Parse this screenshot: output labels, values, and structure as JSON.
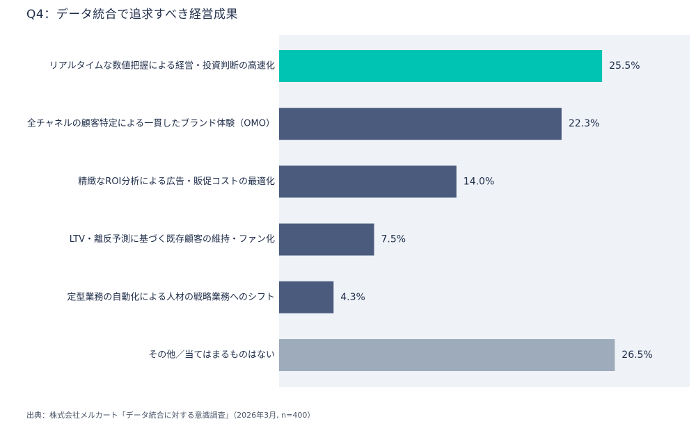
{
  "title": "Q4：データ統合で追求すべき経営成果",
  "source": "出典：株式会社メルカート「データ統合に対する意識調査」（2026年3月, n=400）",
  "colors": {
    "highlight": "#00c4b3",
    "default": "#4a5b7d",
    "other": "#9eabbb",
    "plot_bg": "#eff3f8"
  },
  "chart_data": {
    "type": "bar",
    "orientation": "horizontal",
    "categories": [
      "リアルタイムな数値把握による経営・投資判断の高速化",
      "全チャネルの顧客特定による一貫したブランド体験（OMO）",
      "精緻なROI分析による広告・販促コストの最適化",
      "LTV・離反予測に基づく既存顧客の維持・ファン化",
      "定型業務の自動化による人材の戦略業務へのシフト",
      "その他／当てはまるものはない"
    ],
    "values": [
      25.5,
      22.3,
      14.0,
      7.5,
      4.3,
      26.5
    ],
    "value_labels": [
      "25.5%",
      "22.3%",
      "14.0%",
      "7.5%",
      "4.3%",
      "26.5%"
    ],
    "bar_colors": [
      "highlight",
      "default",
      "default",
      "default",
      "default",
      "other"
    ],
    "xlim": [
      0,
      32
    ],
    "grid": false,
    "legend": "none",
    "unit": "%"
  }
}
